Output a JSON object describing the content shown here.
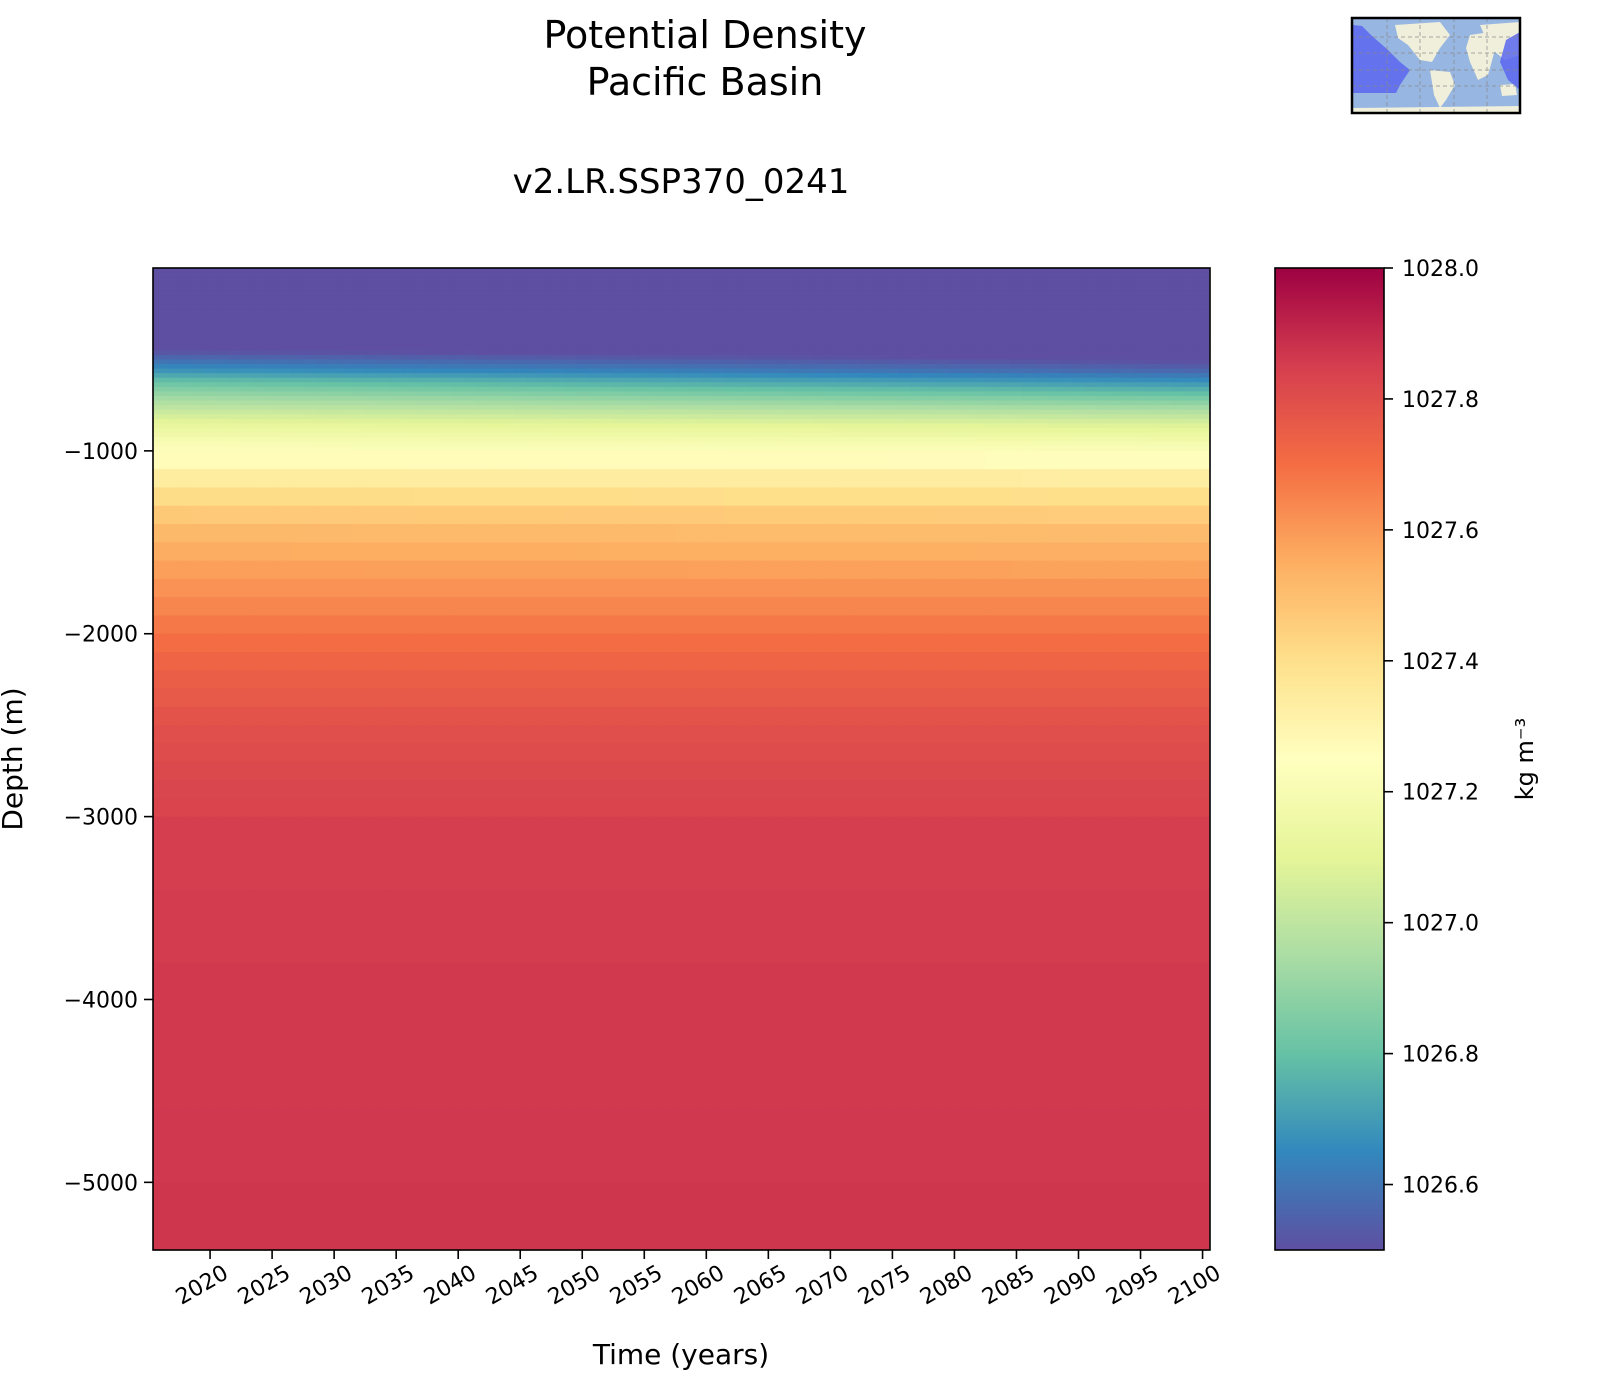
{
  "chart_data": {
    "type": "heatmap",
    "title": "Potential Density",
    "subtitle": "Pacific Basin",
    "run_label": "v2.LR.SSP370_0241",
    "xlabel": "Time (years)",
    "ylabel": "Depth (m)",
    "xlim": [
      2015.4,
      2100.6
    ],
    "ylim": [
      -5370,
      0
    ],
    "xticks": [
      2020,
      2025,
      2030,
      2035,
      2040,
      2045,
      2050,
      2055,
      2060,
      2065,
      2070,
      2075,
      2080,
      2085,
      2090,
      2095,
      2100
    ],
    "yticks": [
      -1000,
      -2000,
      -3000,
      -4000,
      -5000
    ],
    "ytick_labels": [
      "−1000",
      "−2000",
      "−3000",
      "−4000",
      "−5000"
    ],
    "colormap": "Spectral_r",
    "colormap_stops": [
      "#5e4fa2",
      "#3288bd",
      "#66c2a5",
      "#abdda4",
      "#e6f598",
      "#ffffbf",
      "#fee08b",
      "#fdae61",
      "#f46d43",
      "#d53e4f",
      "#9e0142"
    ],
    "colorbar": {
      "label": "kg m⁻³",
      "range": [
        1026.5,
        1028.0
      ],
      "ticks": [
        1026.6,
        1026.8,
        1027.0,
        1027.2,
        1027.4,
        1027.6,
        1027.8,
        1028.0
      ],
      "tick_labels": [
        "1026.6",
        "1026.8",
        "1027.0",
        "1027.2",
        "1027.4",
        "1027.6",
        "1027.8",
        "1028.0"
      ]
    },
    "profile_times": [
      2015,
      2100
    ],
    "depths": [
      0,
      400,
      450,
      500,
      560,
      620,
      700,
      780,
      860,
      950,
      1050,
      1200,
      1400,
      1600,
      1800,
      2000,
      2200,
      2500,
      2800,
      3200,
      4000,
      5370
    ],
    "values": [
      [
        1026.3,
        1026.45,
        1026.5,
        1026.58,
        1026.68,
        1026.8,
        1026.92,
        1027.02,
        1027.12,
        1027.2,
        1027.27,
        1027.38,
        1027.5,
        1027.57,
        1027.63,
        1027.69,
        1027.74,
        1027.79,
        1027.82,
        1027.85,
        1027.86,
        1027.87
      ],
      [
        1026.2,
        1026.4,
        1026.45,
        1026.49,
        1026.56,
        1026.67,
        1026.82,
        1026.96,
        1027.08,
        1027.18,
        1027.26,
        1027.37,
        1027.49,
        1027.56,
        1027.63,
        1027.69,
        1027.74,
        1027.79,
        1027.82,
        1027.85,
        1027.86,
        1027.87
      ]
    ]
  },
  "inset_map": {
    "highlighted_region": "Pacific Basin",
    "ocean_color": "#97b6e1",
    "land_color": "#efefdb",
    "region_color": "#5a67ee"
  }
}
